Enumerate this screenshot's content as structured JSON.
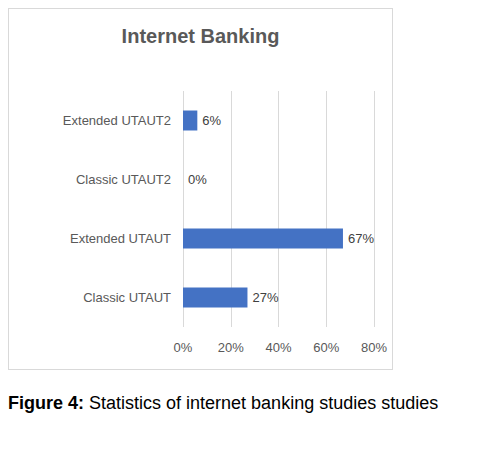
{
  "chart_data": {
    "type": "bar",
    "orientation": "horizontal",
    "title": "Internet Banking",
    "categories": [
      "Classic UTAUT",
      "Extended UTAUT",
      "Classic UTAUT2",
      "Extended UTAUT2"
    ],
    "values": [
      27,
      67,
      0,
      6
    ],
    "value_labels": [
      "27%",
      "67%",
      "0%",
      "6%"
    ],
    "color": "#4472c4",
    "xlim": [
      0,
      80
    ],
    "xticks": [
      {
        "value": 0,
        "label": "0%"
      },
      {
        "value": 20,
        "label": "20%"
      },
      {
        "value": 40,
        "label": "40%"
      },
      {
        "value": 60,
        "label": "60%"
      },
      {
        "value": 80,
        "label": "80%"
      }
    ],
    "grid": true,
    "data_labels": true
  },
  "caption": {
    "label": "Figure 4:",
    "text": "Statistics of internet banking studies studies"
  }
}
